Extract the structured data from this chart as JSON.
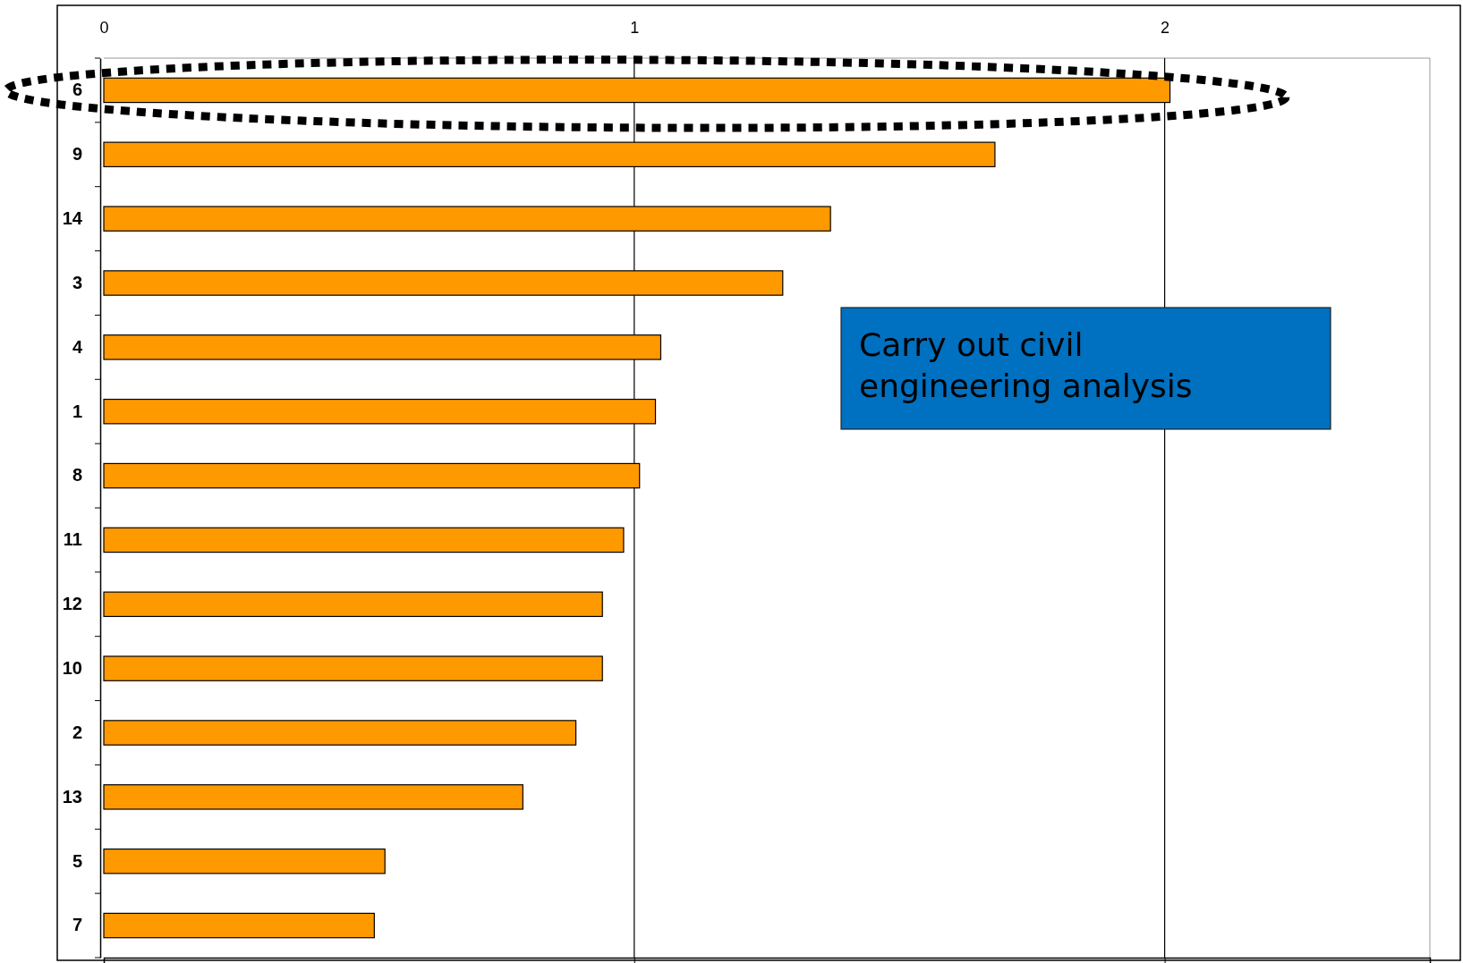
{
  "chart_data": {
    "type": "bar",
    "orientation": "horizontal",
    "categories": [
      "6",
      "9",
      "14",
      "3",
      "4",
      "1",
      "8",
      "11",
      "12",
      "10",
      "2",
      "13",
      "5",
      "7"
    ],
    "values": [
      2.01,
      1.68,
      1.37,
      1.28,
      1.05,
      1.04,
      1.01,
      0.98,
      0.94,
      0.94,
      0.89,
      0.79,
      0.53,
      0.51
    ],
    "color": "#ff9900",
    "xlim": [
      0,
      2.5
    ],
    "xticks": [
      0,
      1,
      2
    ],
    "grid": "x",
    "annotations": [
      "Carry out civil engineering analysis"
    ]
  }
}
